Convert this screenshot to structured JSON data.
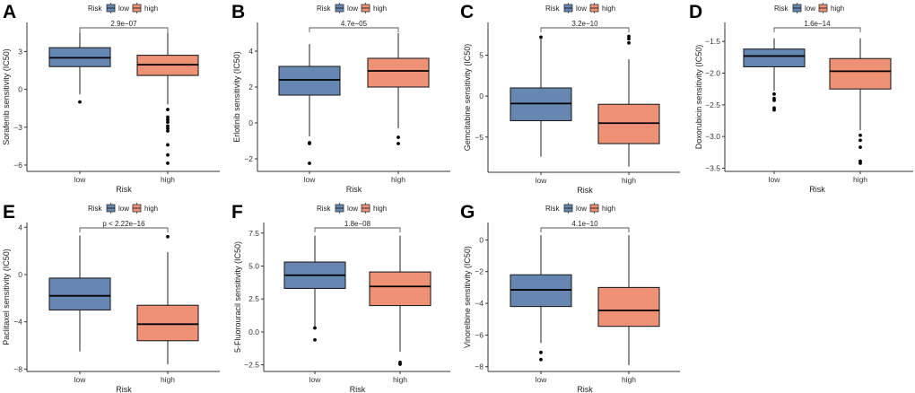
{
  "figure": {
    "legend": {
      "title": "Risk",
      "entries": [
        {
          "label": "low",
          "color": "#6587B2"
        },
        {
          "label": "high",
          "color": "#EE9174"
        }
      ]
    }
  },
  "chart_data": [
    {
      "panel": "A",
      "type": "box",
      "categories": [
        "low",
        "high"
      ],
      "xlabel": "Risk",
      "ylabel": "Sorafenib sensitivity (IC50)",
      "yticks": [
        -6,
        -3,
        0,
        3
      ],
      "ylim": [
        -6.5,
        5.3
      ],
      "pvalue": "2.9e-07",
      "series": [
        {
          "name": "low",
          "whisker_low": -0.4,
          "q1": 1.8,
          "median": 2.5,
          "q3": 3.3,
          "whisker_high": 4.5,
          "outliers": [
            -1.0
          ]
        },
        {
          "name": "high",
          "whisker_low": -1.2,
          "q1": 1.1,
          "median": 1.95,
          "q3": 2.7,
          "whisker_high": 4.5,
          "outliers": [
            -1.6,
            -2.2,
            -2.4,
            -2.6,
            -2.9,
            -3.1,
            -3.3,
            -4.4,
            -5.2,
            -5.85
          ]
        }
      ]
    },
    {
      "panel": "B",
      "type": "box",
      "categories": [
        "low",
        "high"
      ],
      "xlabel": "Risk",
      "ylabel": "Erlotinib sensitivity (IC50)",
      "yticks": [
        -2,
        0,
        2,
        4
      ],
      "ylim": [
        -2.7,
        5.6
      ],
      "pvalue": "4.7e-05",
      "series": [
        {
          "name": "low",
          "whisker_low": -0.75,
          "q1": 1.55,
          "median": 2.4,
          "q3": 3.15,
          "whisker_high": 4.4,
          "outliers": [
            -1.1,
            -1.15,
            -2.25
          ]
        },
        {
          "name": "high",
          "whisker_low": -0.3,
          "q1": 2.0,
          "median": 2.9,
          "q3": 3.6,
          "whisker_high": 5.0,
          "outliers": [
            -0.8,
            -1.15
          ]
        }
      ]
    },
    {
      "panel": "C",
      "type": "box",
      "categories": [
        "low",
        "high"
      ],
      "xlabel": "Risk",
      "ylabel": "Gemcitabine sensitivity (IC50)",
      "yticks": [
        -5,
        0,
        5
      ],
      "ylim": [
        -9.3,
        9.0
      ],
      "pvalue": "3.2e-10",
      "series": [
        {
          "name": "low",
          "whisker_low": -7.4,
          "q1": -3.0,
          "median": -0.9,
          "q3": 1.0,
          "whisker_high": 7.0,
          "outliers": [
            7.2
          ]
        },
        {
          "name": "high",
          "whisker_low": -8.6,
          "q1": -5.8,
          "median": -3.3,
          "q3": -1.0,
          "whisker_high": 4.5,
          "outliers": [
            6.5,
            7.0,
            7.3
          ]
        }
      ]
    },
    {
      "panel": "D",
      "type": "box",
      "categories": [
        "low",
        "high"
      ],
      "xlabel": "Risk",
      "ylabel": "Doxorubicin sensitivity (IC50)",
      "yticks": [
        -3.5,
        -3.0,
        -2.5,
        -2.0,
        -1.5
      ],
      "ylim": [
        -3.55,
        -1.2
      ],
      "pvalue": "1.6e-14",
      "series": [
        {
          "name": "low",
          "whisker_low": -2.28,
          "q1": -1.9,
          "median": -1.73,
          "q3": -1.62,
          "whisker_high": -1.45,
          "outliers": [
            -2.33,
            -2.4,
            -2.43,
            -2.55,
            -2.58
          ]
        },
        {
          "name": "high",
          "whisker_low": -2.9,
          "q1": -2.25,
          "median": -1.97,
          "q3": -1.77,
          "whisker_high": -1.45,
          "outliers": [
            -2.98,
            -3.06,
            -3.17,
            -3.39,
            -3.42
          ]
        }
      ]
    },
    {
      "panel": "E",
      "type": "box",
      "categories": [
        "low",
        "high"
      ],
      "xlabel": "Risk",
      "ylabel": "Paclitaxel sensitivity (IC50)",
      "yticks": [
        -8,
        4,
        0,
        -4
      ],
      "ylim": [
        -8.2,
        4.4
      ],
      "pvalue": "p < 2.22e-16",
      "series": [
        {
          "name": "low",
          "whisker_low": -6.5,
          "q1": -3.0,
          "median": -1.8,
          "q3": -0.3,
          "whisker_high": 3.3,
          "outliers": []
        },
        {
          "name": "high",
          "whisker_low": -7.6,
          "q1": -5.6,
          "median": -4.2,
          "q3": -2.6,
          "whisker_high": 1.9,
          "outliers": [
            3.2
          ]
        }
      ]
    },
    {
      "panel": "F",
      "type": "box",
      "categories": [
        "low",
        "high"
      ],
      "xlabel": "Risk",
      "ylabel": "5-Fluorouracil sensitivity (IC50)",
      "yticks": [
        -2.5,
        0.0,
        2.5,
        5.0,
        7.5
      ],
      "ylim": [
        -3.0,
        8.3
      ],
      "pvalue": "1.8e-08",
      "series": [
        {
          "name": "low",
          "whisker_low": 0.4,
          "q1": 3.3,
          "median": 4.3,
          "q3": 5.3,
          "whisker_high": 7.3,
          "outliers": [
            0.3,
            -0.6
          ]
        },
        {
          "name": "high",
          "whisker_low": -1.5,
          "q1": 2.0,
          "median": 3.45,
          "q3": 4.55,
          "whisker_high": 7.3,
          "outliers": [
            -2.3,
            -2.45
          ]
        }
      ]
    },
    {
      "panel": "G",
      "type": "box",
      "categories": [
        "low",
        "high"
      ],
      "xlabel": "Risk",
      "ylabel": "Vinorelbine sensitivity (IC50)",
      "yticks": [
        -8,
        -6,
        -4,
        -2,
        0
      ],
      "ylim": [
        -8.3,
        1.1
      ],
      "pvalue": "4.1e-10",
      "series": [
        {
          "name": "low",
          "whisker_low": -6.5,
          "q1": -4.2,
          "median": -3.15,
          "q3": -2.2,
          "whisker_high": 0.3,
          "outliers": [
            -7.1,
            -7.55
          ]
        },
        {
          "name": "high",
          "whisker_low": -7.9,
          "q1": -5.45,
          "median": -4.45,
          "q3": -3.0,
          "whisker_high": 0.3,
          "outliers": []
        }
      ]
    }
  ]
}
